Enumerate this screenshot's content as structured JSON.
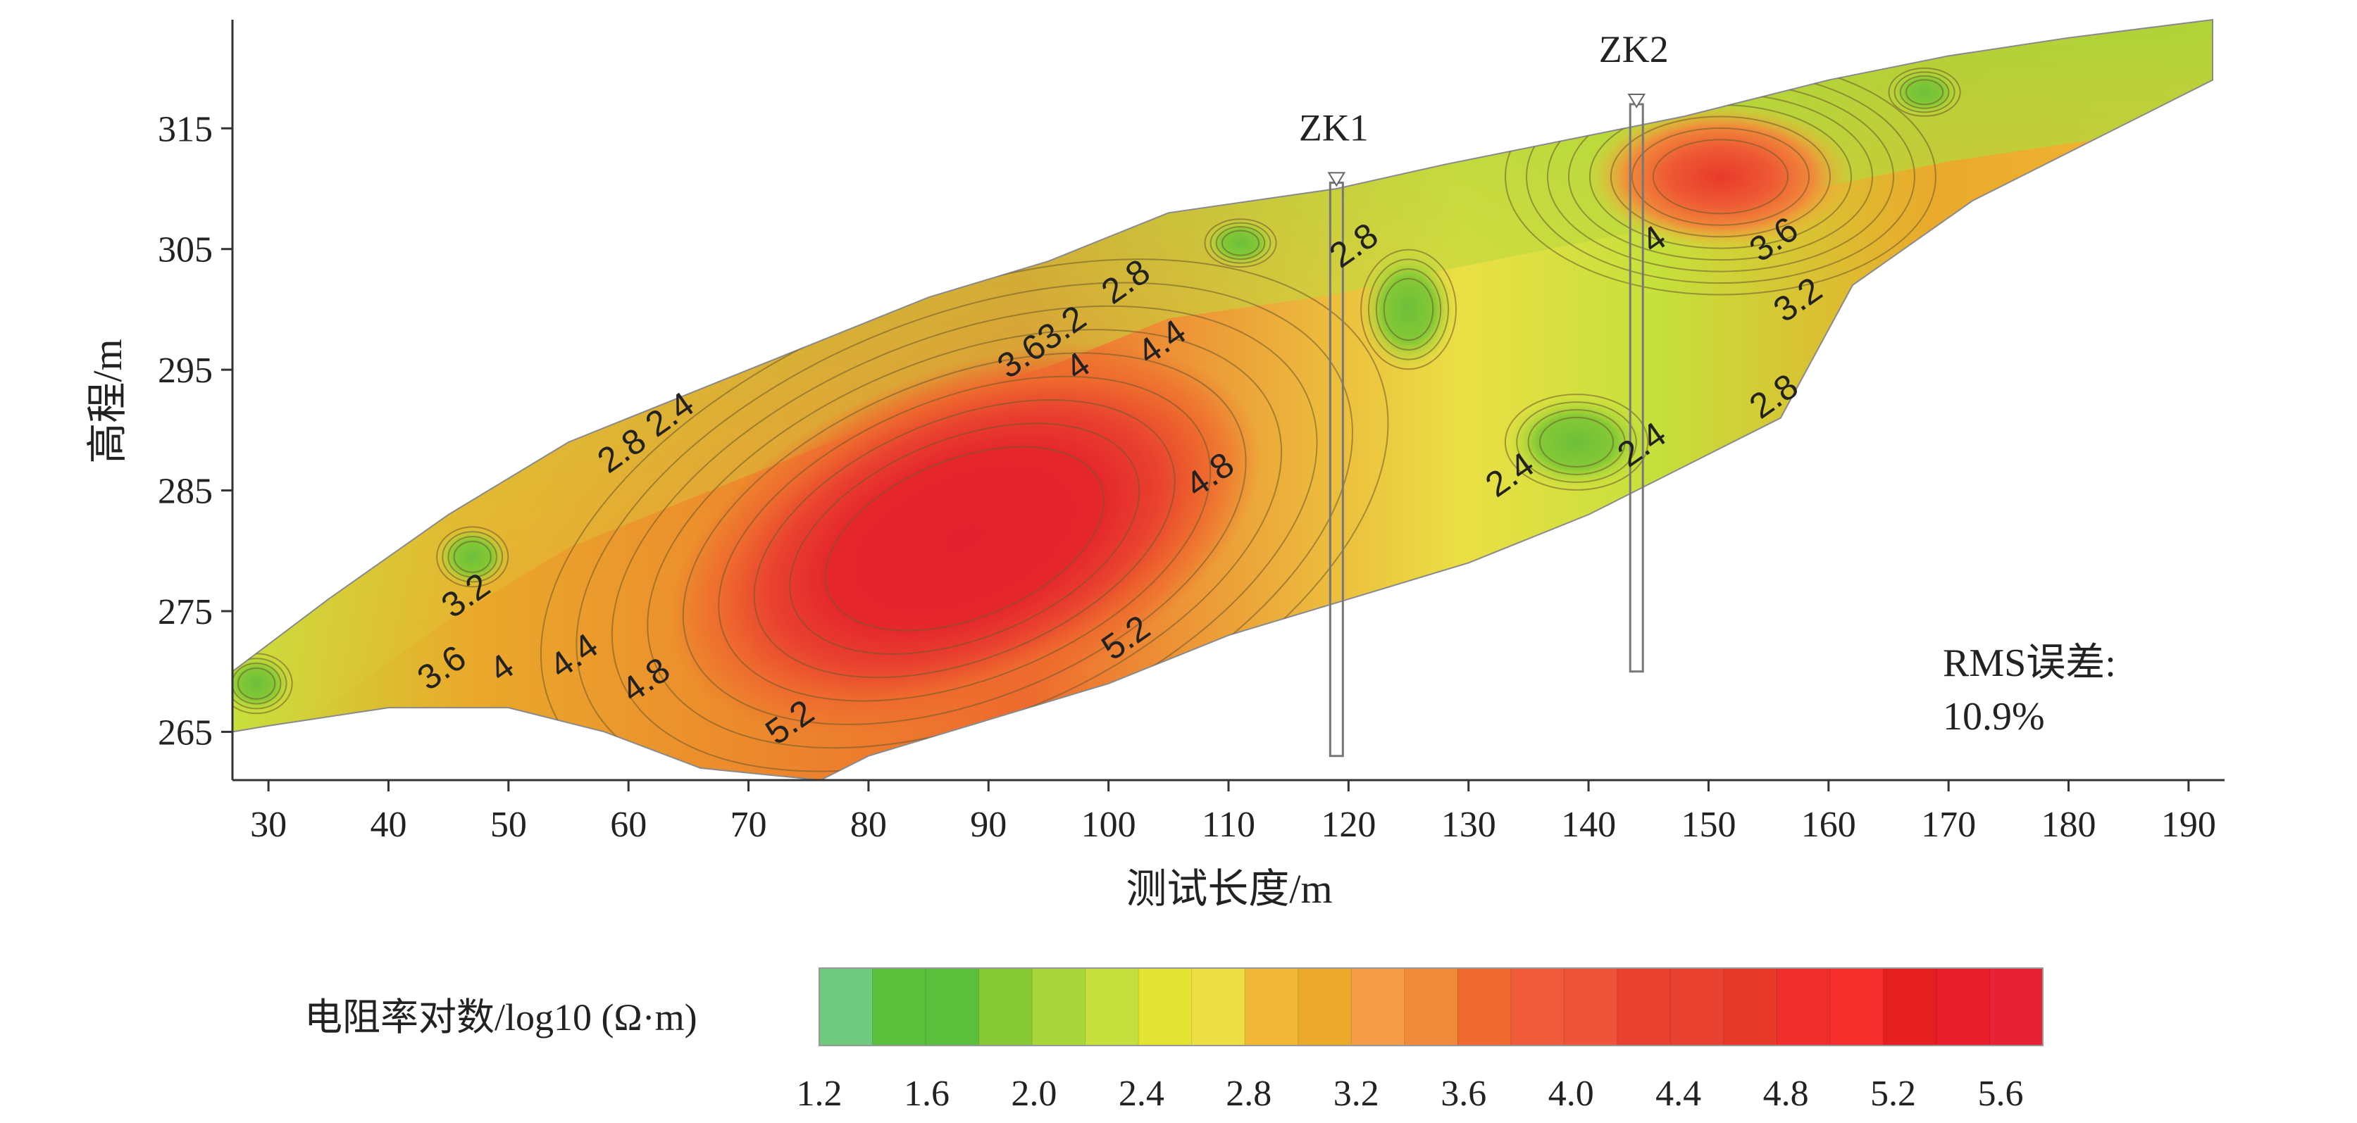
{
  "chart_data": {
    "type": "heatmap",
    "title": "",
    "xlabel": "测试长度/m",
    "ylabel": "高程/m",
    "xlim": [
      27,
      193
    ],
    "ylim": [
      261,
      324
    ],
    "x_ticks": [
      30,
      40,
      50,
      60,
      70,
      80,
      90,
      100,
      110,
      120,
      130,
      140,
      150,
      160,
      170,
      180,
      190
    ],
    "y_ticks": [
      265,
      275,
      285,
      295,
      305,
      315
    ],
    "grid": false,
    "section_top_profile": [
      [
        27,
        270
      ],
      [
        35,
        276
      ],
      [
        45,
        283
      ],
      [
        55,
        289
      ],
      [
        65,
        293
      ],
      [
        75,
        297
      ],
      [
        85,
        301
      ],
      [
        95,
        304
      ],
      [
        105,
        308
      ],
      [
        112,
        309
      ],
      [
        119,
        310
      ],
      [
        128,
        312
      ],
      [
        138,
        314
      ],
      [
        148,
        316
      ],
      [
        160,
        319
      ],
      [
        170,
        321
      ],
      [
        180,
        322.5
      ],
      [
        192,
        324
      ]
    ],
    "section_bottom_profile": [
      [
        192,
        319
      ],
      [
        182,
        314
      ],
      [
        172,
        309
      ],
      [
        162,
        302
      ],
      [
        156,
        291
      ],
      [
        150,
        288
      ],
      [
        144,
        285
      ],
      [
        140,
        283
      ],
      [
        130,
        279
      ],
      [
        120,
        276
      ],
      [
        110,
        273
      ],
      [
        100,
        269
      ],
      [
        90,
        266
      ],
      [
        80,
        263
      ],
      [
        76,
        261
      ],
      [
        66,
        262
      ],
      [
        58,
        265
      ],
      [
        50,
        267
      ],
      [
        40,
        267
      ],
      [
        30,
        265.5
      ],
      [
        27,
        265
      ]
    ],
    "resistivity_zones": [
      {
        "label": "high-resistivity core",
        "cx": 88,
        "cy": 281,
        "rx": 26,
        "ry": 14,
        "log10_rho": 5.6
      },
      {
        "label": "high-resistivity anomaly near ZK2",
        "cx": 151,
        "cy": 311,
        "rx": 11,
        "ry": 6,
        "log10_rho": 4.8
      },
      {
        "label": "low-resistivity zone",
        "cx": 139,
        "cy": 289,
        "rx": 6,
        "ry": 4,
        "log10_rho": 2.0
      },
      {
        "label": "low-resistivity zone",
        "cx": 125,
        "cy": 300,
        "rx": 4,
        "ry": 5,
        "log10_rho": 2.0
      },
      {
        "label": "low-resistivity zone",
        "cx": 111,
        "cy": 305.5,
        "rx": 3,
        "ry": 2,
        "log10_rho": 2.0
      },
      {
        "label": "low-resistivity zone",
        "cx": 47,
        "cy": 279.5,
        "rx": 3,
        "ry": 2.5,
        "log10_rho": 2.2
      },
      {
        "label": "low-resistivity zone",
        "cx": 29,
        "cy": 269,
        "rx": 3,
        "ry": 2.5,
        "log10_rho": 2.0
      },
      {
        "label": "low-resistivity zone",
        "cx": 168,
        "cy": 318,
        "rx": 3,
        "ry": 2,
        "log10_rho": 2.0
      }
    ],
    "contour_labels": [
      {
        "text": "2.4",
        "x": 64,
        "y": 290.5
      },
      {
        "text": "2.8",
        "x": 60,
        "y": 287.5
      },
      {
        "text": "2.8",
        "x": 102,
        "y": 301.5
      },
      {
        "text": "3.63.2",
        "x": 95,
        "y": 296.5
      },
      {
        "text": "4",
        "x": 98,
        "y": 294.5
      },
      {
        "text": "4.4",
        "x": 105,
        "y": 296.5
      },
      {
        "text": "4.8",
        "x": 109,
        "y": 285.5
      },
      {
        "text": "3.2",
        "x": 47,
        "y": 275.5
      },
      {
        "text": "3.6",
        "x": 45,
        "y": 269.5
      },
      {
        "text": "4",
        "x": 50,
        "y": 269.5
      },
      {
        "text": "4.4",
        "x": 56,
        "y": 270.5
      },
      {
        "text": "4.8",
        "x": 62,
        "y": 268.5
      },
      {
        "text": "5.2",
        "x": 74,
        "y": 265
      },
      {
        "text": "5.2",
        "x": 102,
        "y": 272
      },
      {
        "text": "2.8",
        "x": 121,
        "y": 304.5
      },
      {
        "text": "2.4",
        "x": 134,
        "y": 285.5
      },
      {
        "text": "2.4",
        "x": 145,
        "y": 288
      },
      {
        "text": "4",
        "x": 146,
        "y": 305
      },
      {
        "text": "3.6",
        "x": 156,
        "y": 305
      },
      {
        "text": "3.2",
        "x": 158,
        "y": 300
      },
      {
        "text": "2.8",
        "x": 156,
        "y": 292
      }
    ],
    "boreholes": [
      {
        "name": "ZK1",
        "x": 119,
        "top": 310.5,
        "bottom": 263
      },
      {
        "name": "ZK2",
        "x": 144,
        "top": 317,
        "bottom": 270
      }
    ],
    "annotation": {
      "line1": "RMS误差:",
      "line2": "10.9%"
    },
    "colorbar": {
      "title": "电阻率对数/log10 (Ω·m)",
      "ticks": [
        "1.2",
        "1.6",
        "2.0",
        "2.4",
        "2.8",
        "3.2",
        "3.6",
        "4.0",
        "4.4",
        "4.8",
        "5.2",
        "5.6"
      ],
      "colors": [
        "#6fc97f",
        "#5ac03c",
        "#5ac03c",
        "#86c935",
        "#a9d63a",
        "#c5e03c",
        "#e3e333",
        "#ebdf44",
        "#f4b839",
        "#eaa92b",
        "#f69b46",
        "#f08a3a",
        "#ee6a2e",
        "#ef5a3a",
        "#ef5339",
        "#e9412f",
        "#e9412f",
        "#e83a2a",
        "#ef2d2d",
        "#f5302c",
        "#e51f1f",
        "#e81e2a",
        "#e82235"
      ]
    }
  }
}
